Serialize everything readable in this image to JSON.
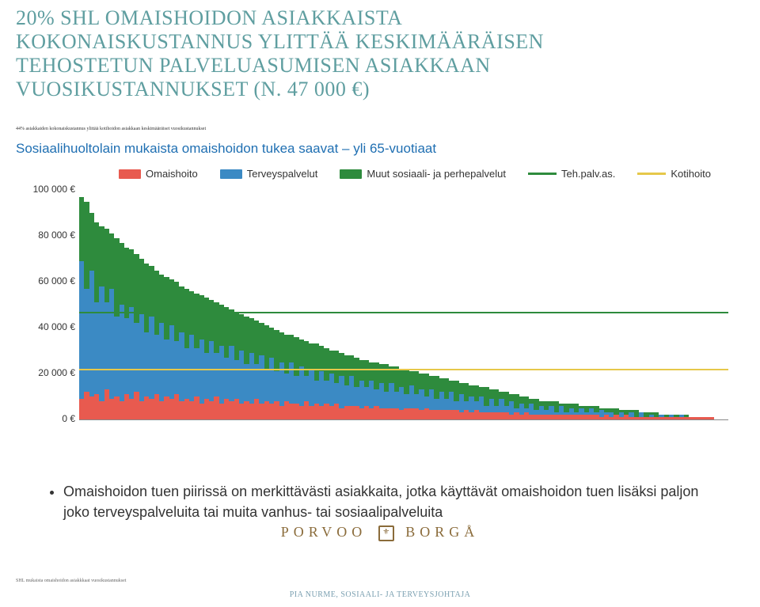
{
  "title_lines": [
    "20% SHL OMAISHOIDON ASIAKKAISTA",
    "KOKONAISKUSTANNUS YLITTÄÄ KESKIMÄÄRÄISEN",
    "TEHOSTETUN PALVELUASUMISEN ASIAKKAAN",
    "VUOSIKUSTANNUKSET (N. 47 000 €)"
  ],
  "title_color": "#5f9ea0",
  "subnote": "44% asiakkaiden kokonaiskustannus ylittää kotihoidon asiakkaan keskimääräiset vuosikustannukset",
  "subtitle": "Sosiaalihuoltolain mukaista omaishoidon tukea saavat – yli 65-vuotiaat",
  "subtitle_color": "#1f6fb2",
  "legend": [
    {
      "kind": "box",
      "label": "Omaishoito",
      "color": "#e85a4f"
    },
    {
      "kind": "box",
      "label": "Terveyspalvelut",
      "color": "#3b8ac4"
    },
    {
      "kind": "box",
      "label": "Muut sosiaali- ja perhepalvelut",
      "color": "#2e8b3d"
    },
    {
      "kind": "line",
      "label": "Teh.palv.as.",
      "color": "#2e8b3d"
    },
    {
      "kind": "line",
      "label": "Kotihoito",
      "color": "#e6c84a"
    }
  ],
  "chart": {
    "type": "stacked-bar",
    "ylim": [
      0,
      100000
    ],
    "ytick_step": 20000,
    "ytick_labels": [
      "0 €",
      "20 000 €",
      "40 000 €",
      "60 000 €",
      "80 000 €",
      "100 000 €"
    ],
    "background_color": "#ffffff",
    "reference_lines": [
      {
        "value": 47000,
        "color": "#2e8b3d"
      },
      {
        "value": 22000,
        "color": "#e6c84a"
      }
    ],
    "series_colors": {
      "omaishoito": "#e85a4f",
      "terveys": "#3b8ac4",
      "muut": "#2e8b3d"
    },
    "bars": [
      {
        "o": 9000,
        "t": 60000,
        "m": 28000
      },
      {
        "o": 12000,
        "t": 45000,
        "m": 38000
      },
      {
        "o": 10000,
        "t": 55000,
        "m": 25000
      },
      {
        "o": 11000,
        "t": 40000,
        "m": 35000
      },
      {
        "o": 8000,
        "t": 50000,
        "m": 26000
      },
      {
        "o": 13000,
        "t": 38000,
        "m": 32000
      },
      {
        "o": 9000,
        "t": 48000,
        "m": 24000
      },
      {
        "o": 10000,
        "t": 35000,
        "m": 34000
      },
      {
        "o": 8000,
        "t": 42000,
        "m": 27000
      },
      {
        "o": 11000,
        "t": 33000,
        "m": 31000
      },
      {
        "o": 9000,
        "t": 40000,
        "m": 25000
      },
      {
        "o": 12000,
        "t": 30000,
        "m": 30000
      },
      {
        "o": 8000,
        "t": 38000,
        "m": 24000
      },
      {
        "o": 10000,
        "t": 28000,
        "m": 30000
      },
      {
        "o": 9000,
        "t": 36000,
        "m": 22000
      },
      {
        "o": 11000,
        "t": 26000,
        "m": 28000
      },
      {
        "o": 8000,
        "t": 34000,
        "m": 21000
      },
      {
        "o": 10000,
        "t": 25000,
        "m": 27000
      },
      {
        "o": 9000,
        "t": 32000,
        "m": 20000
      },
      {
        "o": 11000,
        "t": 23000,
        "m": 26000
      },
      {
        "o": 8000,
        "t": 30000,
        "m": 20000
      },
      {
        "o": 9000,
        "t": 22000,
        "m": 26000
      },
      {
        "o": 8000,
        "t": 29000,
        "m": 19000
      },
      {
        "o": 10000,
        "t": 21000,
        "m": 24000
      },
      {
        "o": 7000,
        "t": 28000,
        "m": 19000
      },
      {
        "o": 9000,
        "t": 20000,
        "m": 24000
      },
      {
        "o": 8000,
        "t": 26000,
        "m": 18000
      },
      {
        "o": 10000,
        "t": 19000,
        "m": 22000
      },
      {
        "o": 7000,
        "t": 25000,
        "m": 18000
      },
      {
        "o": 9000,
        "t": 18000,
        "m": 22000
      },
      {
        "o": 8000,
        "t": 24000,
        "m": 16000
      },
      {
        "o": 9000,
        "t": 17000,
        "m": 21000
      },
      {
        "o": 7000,
        "t": 23000,
        "m": 16000
      },
      {
        "o": 8000,
        "t": 16000,
        "m": 21000
      },
      {
        "o": 7000,
        "t": 22000,
        "m": 15000
      },
      {
        "o": 9000,
        "t": 15000,
        "m": 19000
      },
      {
        "o": 7000,
        "t": 21000,
        "m": 14000
      },
      {
        "o": 8000,
        "t": 14000,
        "m": 19000
      },
      {
        "o": 7000,
        "t": 20000,
        "m": 13000
      },
      {
        "o": 8000,
        "t": 13000,
        "m": 18000
      },
      {
        "o": 6000,
        "t": 19000,
        "m": 13000
      },
      {
        "o": 8000,
        "t": 12000,
        "m": 17000
      },
      {
        "o": 7000,
        "t": 18000,
        "m": 12000
      },
      {
        "o": 7000,
        "t": 12000,
        "m": 17000
      },
      {
        "o": 6000,
        "t": 17000,
        "m": 12000
      },
      {
        "o": 8000,
        "t": 11000,
        "m": 15000
      },
      {
        "o": 6000,
        "t": 16000,
        "m": 11000
      },
      {
        "o": 7000,
        "t": 10000,
        "m": 16000
      },
      {
        "o": 6000,
        "t": 15000,
        "m": 11000
      },
      {
        "o": 7000,
        "t": 10000,
        "m": 14000
      },
      {
        "o": 6000,
        "t": 14000,
        "m": 10000
      },
      {
        "o": 7000,
        "t": 9000,
        "m": 14000
      },
      {
        "o": 5000,
        "t": 14000,
        "m": 10000
      },
      {
        "o": 6000,
        "t": 9000,
        "m": 13000
      },
      {
        "o": 6000,
        "t": 13000,
        "m": 9000
      },
      {
        "o": 6000,
        "t": 8000,
        "m": 13000
      },
      {
        "o": 5000,
        "t": 12000,
        "m": 9000
      },
      {
        "o": 6000,
        "t": 8000,
        "m": 12000
      },
      {
        "o": 5000,
        "t": 12000,
        "m": 8000
      },
      {
        "o": 6000,
        "t": 7000,
        "m": 12000
      },
      {
        "o": 5000,
        "t": 11000,
        "m": 8000
      },
      {
        "o": 5000,
        "t": 7000,
        "m": 12000
      },
      {
        "o": 5000,
        "t": 11000,
        "m": 7000
      },
      {
        "o": 5000,
        "t": 7000,
        "m": 11000
      },
      {
        "o": 4000,
        "t": 10000,
        "m": 8000
      },
      {
        "o": 5000,
        "t": 6000,
        "m": 11000
      },
      {
        "o": 5000,
        "t": 10000,
        "m": 6000
      },
      {
        "o": 5000,
        "t": 6000,
        "m": 10000
      },
      {
        "o": 4000,
        "t": 9000,
        "m": 7000
      },
      {
        "o": 5000,
        "t": 5000,
        "m": 10000
      },
      {
        "o": 4000,
        "t": 9000,
        "m": 6000
      },
      {
        "o": 4000,
        "t": 5000,
        "m": 10000
      },
      {
        "o": 4000,
        "t": 8000,
        "m": 6000
      },
      {
        "o": 4000,
        "t": 5000,
        "m": 9000
      },
      {
        "o": 4000,
        "t": 8000,
        "m": 5000
      },
      {
        "o": 4000,
        "t": 4000,
        "m": 9000
      },
      {
        "o": 3000,
        "t": 8000,
        "m": 5000
      },
      {
        "o": 4000,
        "t": 4000,
        "m": 8000
      },
      {
        "o": 3000,
        "t": 7000,
        "m": 5000
      },
      {
        "o": 4000,
        "t": 4000,
        "m": 7000
      },
      {
        "o": 3000,
        "t": 7000,
        "m": 4000
      },
      {
        "o": 3000,
        "t": 3000,
        "m": 8000
      },
      {
        "o": 3000,
        "t": 6000,
        "m": 4000
      },
      {
        "o": 3000,
        "t": 3000,
        "m": 7000
      },
      {
        "o": 3000,
        "t": 6000,
        "m": 3000
      },
      {
        "o": 3000,
        "t": 3000,
        "m": 6000
      },
      {
        "o": 2000,
        "t": 6000,
        "m": 3000
      },
      {
        "o": 3000,
        "t": 2000,
        "m": 6000
      },
      {
        "o": 2000,
        "t": 5000,
        "m": 3000
      },
      {
        "o": 3000,
        "t": 2000,
        "m": 5000
      },
      {
        "o": 2000,
        "t": 5000,
        "m": 2000
      },
      {
        "o": 2000,
        "t": 2000,
        "m": 5000
      },
      {
        "o": 2000,
        "t": 4000,
        "m": 2000
      },
      {
        "o": 2000,
        "t": 2000,
        "m": 4000
      },
      {
        "o": 2000,
        "t": 4000,
        "m": 2000
      },
      {
        "o": 2000,
        "t": 1000,
        "m": 5000
      },
      {
        "o": 2000,
        "t": 4000,
        "m": 1000
      },
      {
        "o": 2000,
        "t": 1000,
        "m": 4000
      },
      {
        "o": 2000,
        "t": 3000,
        "m": 2000
      },
      {
        "o": 2000,
        "t": 1000,
        "m": 4000
      },
      {
        "o": 2000,
        "t": 3000,
        "m": 1000
      },
      {
        "o": 2000,
        "t": 1000,
        "m": 3000
      },
      {
        "o": 2000,
        "t": 3000,
        "m": 1000
      },
      {
        "o": 2000,
        "t": 1000,
        "m": 3000
      },
      {
        "o": 1000,
        "t": 3000,
        "m": 1000
      },
      {
        "o": 2000,
        "t": 1000,
        "m": 2000
      },
      {
        "o": 1000,
        "t": 2000,
        "m": 2000
      },
      {
        "o": 2000,
        "t": 0,
        "m": 3000
      },
      {
        "o": 1000,
        "t": 2000,
        "m": 1000
      },
      {
        "o": 2000,
        "t": 0,
        "m": 2000
      },
      {
        "o": 1000,
        "t": 2000,
        "m": 1000
      },
      {
        "o": 1000,
        "t": 0,
        "m": 3000
      },
      {
        "o": 1000,
        "t": 2000,
        "m": 0
      },
      {
        "o": 1000,
        "t": 0,
        "m": 2000
      },
      {
        "o": 1000,
        "t": 1000,
        "m": 1000
      },
      {
        "o": 1000,
        "t": 0,
        "m": 2000
      },
      {
        "o": 1000,
        "t": 1000,
        "m": 0
      },
      {
        "o": 1000,
        "t": 0,
        "m": 1000
      },
      {
        "o": 1000,
        "t": 1000,
        "m": 0
      },
      {
        "o": 1000,
        "t": 0,
        "m": 1000
      },
      {
        "o": 1000,
        "t": 1000,
        "m": 0
      },
      {
        "o": 1000,
        "t": 0,
        "m": 1000
      },
      {
        "o": 1000,
        "t": 0,
        "m": 0
      },
      {
        "o": 1000,
        "t": 0,
        "m": 0
      },
      {
        "o": 1000,
        "t": 0,
        "m": 0
      },
      {
        "o": 1000,
        "t": 0,
        "m": 0
      },
      {
        "o": 1000,
        "t": 0,
        "m": 0
      },
      {
        "o": 0,
        "t": 0,
        "m": 0
      },
      {
        "o": 0,
        "t": 0,
        "m": 0
      },
      {
        "o": 0,
        "t": 0,
        "m": 0
      }
    ]
  },
  "bullet": "Omaishoidon tuen piirissä on merkittävästi asiakkaita, jotka käyttävät omaishoidon tuen lisäksi paljon joko terveyspalveluita tai muita vanhus- tai sosiaalipalveluita",
  "logo_left": "PORVOO",
  "logo_right": "BORGÅ",
  "logo_color": "#8a6b3a",
  "tiny_footer": "SHL mukaista omaishoidon asiakkkaat vuosikustannukset",
  "footer": "PIA NURME, SOSIAALI- JA TERVEYSJOHTAJA",
  "footer_color": "#7a9fb0"
}
